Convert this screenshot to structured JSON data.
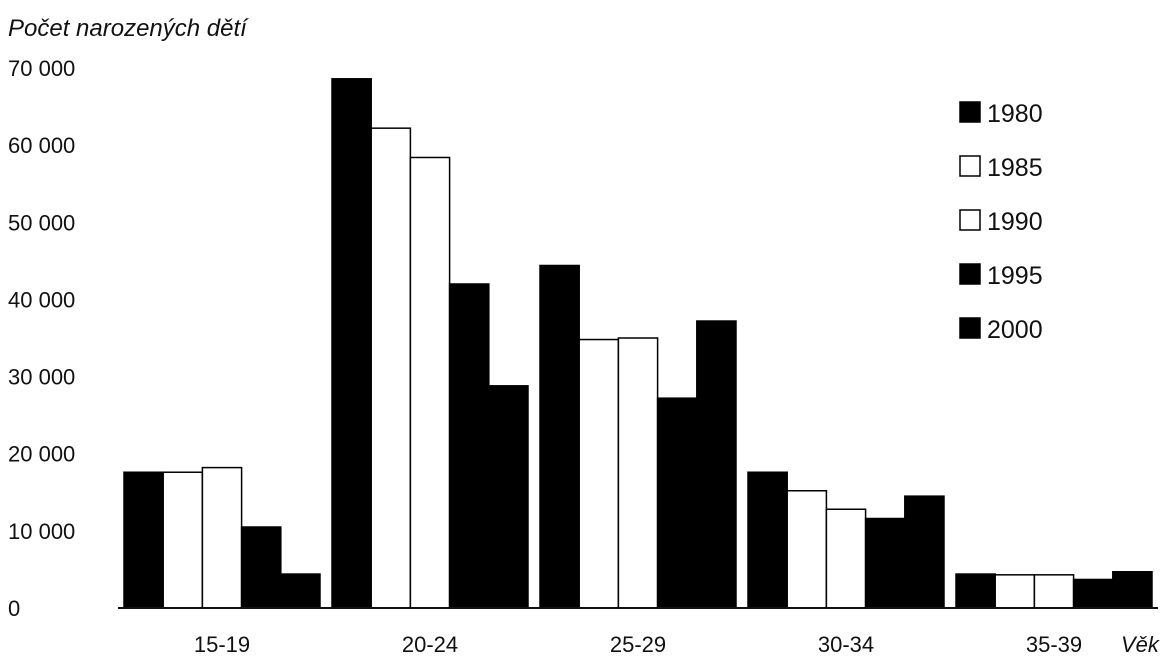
{
  "chart_data": {
    "type": "bar",
    "title": "",
    "ylabel": "Počet narozených dětí",
    "xlabel": "Věk",
    "categories": [
      "15-19",
      "20-24",
      "25-29",
      "30-34",
      "35-39"
    ],
    "yticks": [
      "0",
      "10 000",
      "20 000",
      "30 000",
      "40 000",
      "50 000",
      "60 000",
      "70 000"
    ],
    "ylim": [
      0,
      70000
    ],
    "legend_position": "top-right",
    "series": [
      {
        "name": "1980",
        "fill": "#000000",
        "values": [
          17600,
          68600,
          44400,
          17600,
          4400
        ]
      },
      {
        "name": "1985",
        "fill": "#ffffff",
        "values": [
          17600,
          62200,
          34800,
          15200,
          4300
        ]
      },
      {
        "name": "1990",
        "fill": "#ffffff",
        "values": [
          18200,
          58400,
          35000,
          12800,
          4300
        ]
      },
      {
        "name": "1995",
        "fill": "#000000",
        "values": [
          10500,
          42000,
          27200,
          11600,
          3700
        ]
      },
      {
        "name": "2000",
        "fill": "#000000",
        "values": [
          4400,
          28800,
          37200,
          14500,
          4700
        ]
      }
    ]
  }
}
